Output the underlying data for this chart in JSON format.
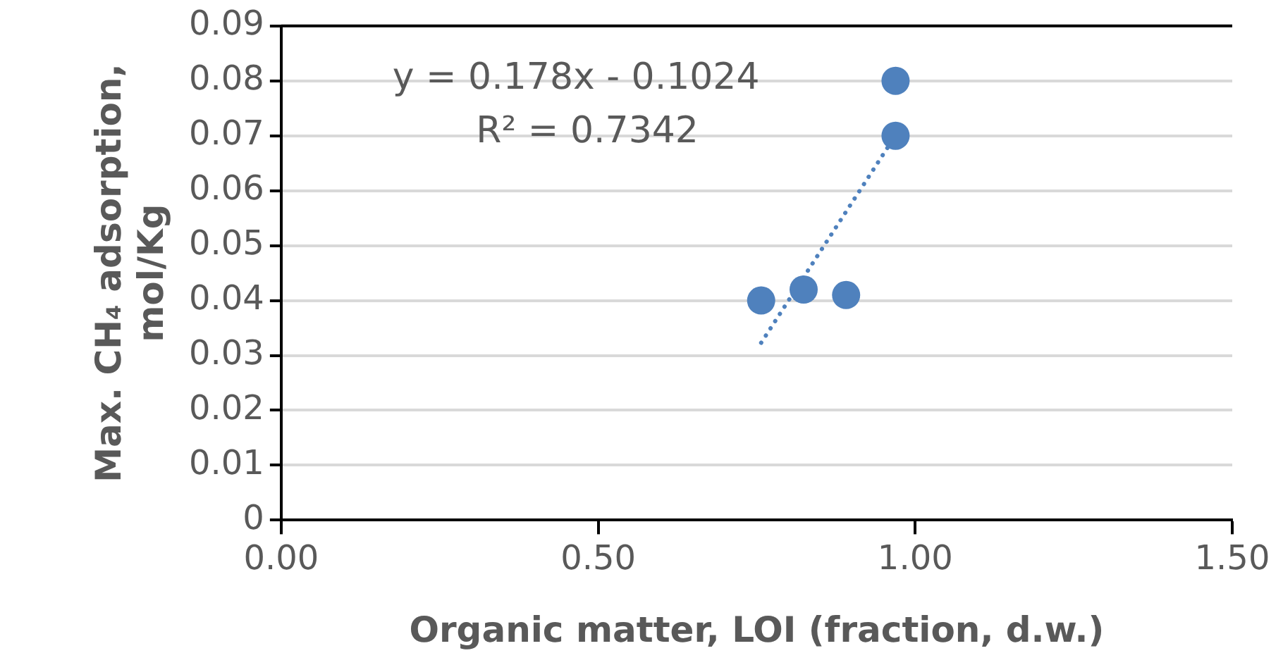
{
  "chart_data": {
    "type": "scatter",
    "xlabel": "Organic matter, LOI (fraction, d.w.)",
    "ylabel": "Max. CH₄ adsorption, mol/Kg",
    "series": [
      {
        "x": [
          0.757,
          0.824,
          0.891,
          0.969,
          0.969
        ],
        "values": [
          0.04,
          0.042,
          0.041,
          0.07,
          0.08
        ],
        "color": "#4f81bd",
        "marker": "circle"
      },
      {
        "type": "line",
        "x": [
          0.757,
          0.969
        ],
        "values": [
          0.0323,
          0.0701
        ],
        "color": "#4f81bd",
        "line_style": "dotted",
        "marker": "none"
      }
    ],
    "xlim": [
      0,
      1.5
    ],
    "xticks": [
      {
        "value": 0,
        "label": "0.00"
      },
      {
        "value": 0.5,
        "label": "0.50"
      },
      {
        "value": 1,
        "label": "1.00"
      },
      {
        "value": 1.5,
        "label": "1.50"
      }
    ],
    "ylim": [
      0,
      0.09
    ],
    "yticks": [
      0,
      0.01,
      0.02,
      0.03,
      0.04,
      0.05,
      0.06,
      0.07,
      0.08,
      0.09
    ],
    "grid": "y",
    "legend": false,
    "annotations": [
      "y = 0.178x - 0.1024",
      "R² = 0.7342"
    ]
  }
}
